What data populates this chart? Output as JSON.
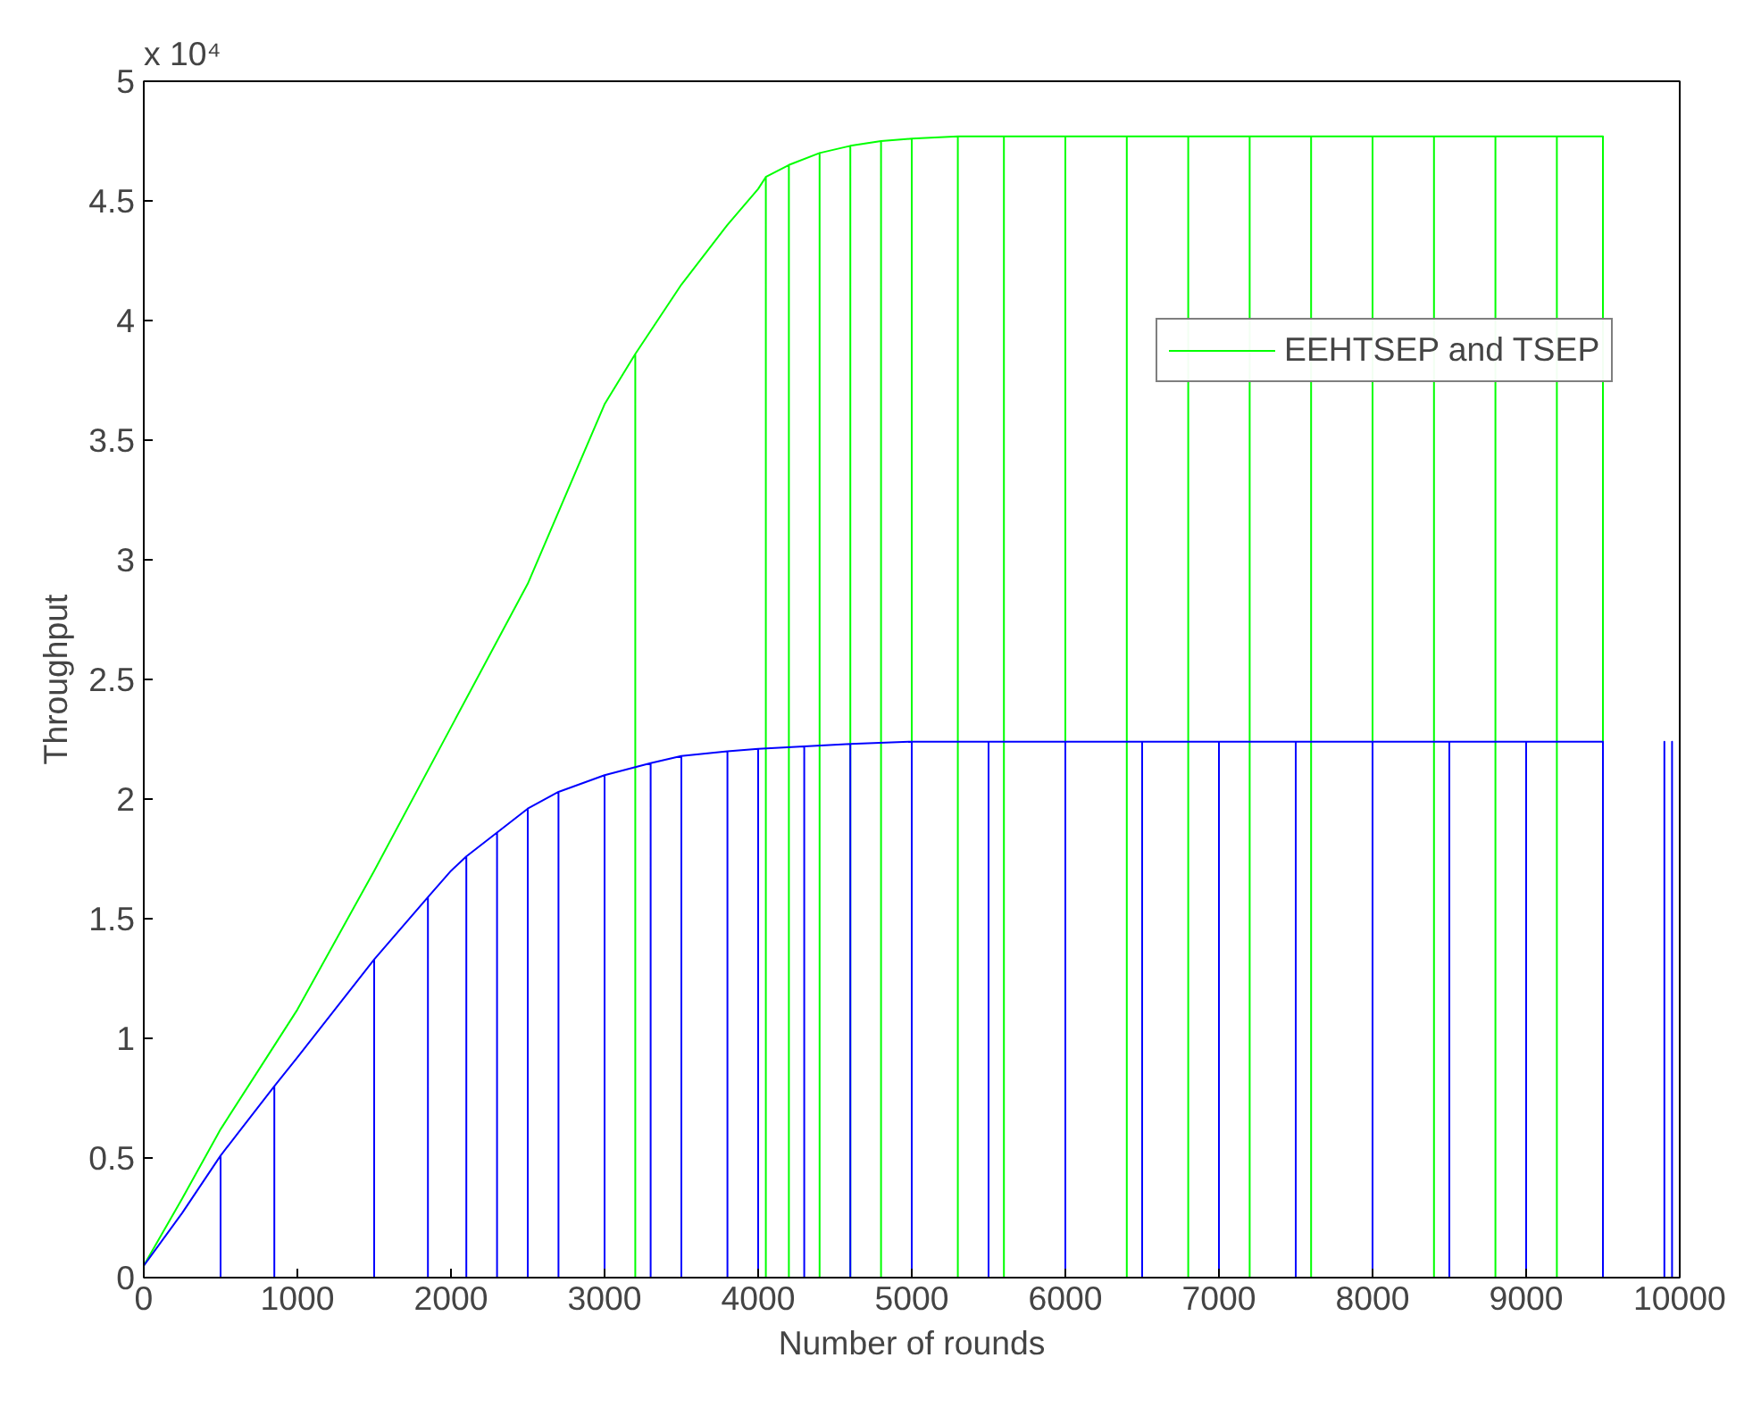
{
  "chart_data": {
    "type": "line",
    "xlabel": "Number of rounds",
    "ylabel": "Throughput",
    "annotations": [
      "x 10⁴"
    ],
    "xlim": [
      0,
      10000
    ],
    "xticks": [
      0,
      1000,
      2000,
      3000,
      4000,
      5000,
      6000,
      7000,
      8000,
      9000,
      10000
    ],
    "ylim": [
      0,
      5
    ],
    "yticks": [
      0,
      0.5,
      1,
      1.5,
      2,
      2.5,
      3,
      3.5,
      4,
      4.5,
      5
    ],
    "grid": false,
    "legend": "top right",
    "marker": "none",
    "line_style": "solid",
    "series": [
      {
        "name": "EEHTSEP and TSEP",
        "color": "#00ff00",
        "x": [
          0,
          250,
          500,
          750,
          1000,
          1500,
          2000,
          2500,
          3000,
          3200,
          3200,
          3200,
          3500,
          3800,
          4000,
          4050,
          4050,
          4050,
          4200,
          4200,
          4200,
          4400,
          4400,
          4400,
          4600,
          4600,
          4600,
          4800,
          4800,
          4800,
          5000,
          5000,
          5000,
          5300,
          5300,
          5300,
          5600,
          5600,
          5600,
          6000,
          6000,
          6000,
          6400,
          6400,
          6400,
          6800,
          6800,
          6800,
          7200,
          7200,
          7200,
          7600,
          7600,
          7600,
          8000,
          8000,
          8000,
          8400,
          8400,
          8400,
          8800,
          8800,
          8800,
          9200,
          9200,
          9200,
          9500,
          9500
        ],
        "values": [
          0.05,
          0.33,
          0.62,
          0.87,
          1.12,
          1.7,
          2.3,
          2.9,
          3.65,
          3.86,
          0,
          3.86,
          4.15,
          4.4,
          4.55,
          4.6,
          0,
          4.6,
          4.65,
          0,
          4.65,
          4.7,
          0,
          4.7,
          4.73,
          0,
          4.73,
          4.75,
          0,
          4.75,
          4.76,
          0,
          4.76,
          4.77,
          0,
          4.77,
          4.77,
          0,
          4.77,
          4.77,
          0,
          4.77,
          4.77,
          0,
          4.77,
          4.77,
          0,
          4.77,
          4.77,
          0,
          4.77,
          4.77,
          0,
          4.77,
          4.77,
          0,
          4.77,
          4.77,
          0,
          4.77,
          4.77,
          0,
          4.77,
          4.77,
          0,
          4.77,
          4.77,
          0
        ]
      },
      {
        "color": "#0000ff",
        "x": [
          0,
          250,
          500,
          500,
          500,
          850,
          850,
          850,
          1000,
          1500,
          1500,
          1500,
          1850,
          1850,
          1850,
          2000,
          2100,
          2100,
          2100,
          2300,
          2300,
          2300,
          2500,
          2500,
          2500,
          2700,
          2700,
          2700,
          3000,
          3000,
          3000,
          3300,
          3300,
          3300,
          3500,
          3500,
          3500,
          3800,
          3800,
          3800,
          4000,
          4000,
          4000,
          4300,
          4300,
          4300,
          4600,
          4600,
          4600,
          5000,
          5000,
          5000,
          5500,
          5500,
          5500,
          6000,
          6000,
          6000,
          6500,
          6500,
          6500,
          7000,
          7000,
          7000,
          7500,
          7500,
          7500,
          8000,
          8000,
          8000,
          8500,
          8500,
          8500,
          9000,
          9000,
          9000,
          9500,
          9500,
          9900,
          9900,
          9900,
          9950,
          9950,
          9950,
          10000
        ],
        "values": [
          0.05,
          0.27,
          0.51,
          0,
          0.51,
          0.8,
          0,
          0.8,
          0.92,
          1.33,
          0,
          1.33,
          1.59,
          0,
          1.59,
          1.7,
          1.76,
          0,
          1.76,
          1.86,
          0,
          1.86,
          1.96,
          0,
          1.96,
          2.03,
          0,
          2.03,
          2.1,
          0,
          2.1,
          2.15,
          0,
          2.15,
          2.18,
          0,
          2.18,
          2.2,
          0,
          2.2,
          2.21,
          0,
          2.21,
          2.22,
          0,
          2.22,
          2.23,
          0,
          2.23,
          2.24,
          0,
          2.24,
          2.24,
          0,
          2.24,
          2.24,
          0,
          2.24,
          2.24,
          0,
          2.24,
          2.24,
          0,
          2.24,
          2.24,
          0,
          2.24,
          2.24,
          0,
          2.24,
          2.24,
          0,
          2.24,
          2.24,
          0,
          2.24,
          2.24,
          0,
          0,
          2.24,
          0,
          0,
          2.24,
          0,
          0
        ]
      }
    ]
  }
}
